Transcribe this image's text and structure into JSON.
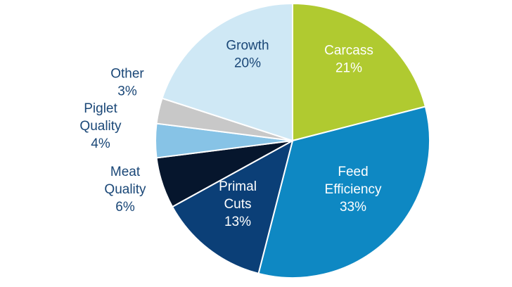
{
  "chart_data": {
    "type": "pie",
    "title": "",
    "start_angle_deg": 0,
    "direction": "clockwise",
    "slices": [
      {
        "name": "Carcass",
        "value": 21,
        "value_label": "21%",
        "color": "#b0ca30",
        "label_lines": [
          "Carcass",
          "21%"
        ],
        "label_color": "#ffffff",
        "label_position": "inside"
      },
      {
        "name": "Feed Efficiency",
        "value": 33,
        "value_label": "33%",
        "color": "#0e88c3",
        "label_lines": [
          "Feed",
          "Efficiency",
          "33%"
        ],
        "label_color": "#ffffff",
        "label_position": "inside"
      },
      {
        "name": "Primal Cuts",
        "value": 13,
        "value_label": "13%",
        "color": "#0b3f77",
        "label_lines": [
          "Primal",
          "Cuts",
          "13%"
        ],
        "label_color": "#ffffff",
        "label_position": "inside"
      },
      {
        "name": "Meat Quality",
        "value": 6,
        "value_label": "6%",
        "color": "#06162d",
        "label_lines": [
          "Meat",
          "Quality",
          "6%"
        ],
        "label_color": "#1a4777",
        "label_position": "outside"
      },
      {
        "name": "Piglet Quality",
        "value": 4,
        "value_label": "4%",
        "color": "#87c3e6",
        "label_lines": [
          "Piglet",
          "Quality",
          "4%"
        ],
        "label_color": "#1a4777",
        "label_position": "outside"
      },
      {
        "name": "Other",
        "value": 3,
        "value_label": "3%",
        "color": "#c8c8c8",
        "label_lines": [
          "Other",
          "3%"
        ],
        "label_color": "#1a4777",
        "label_position": "outside"
      },
      {
        "name": "Growth",
        "value": 20,
        "value_label": "20%",
        "color": "#cfe8f5",
        "label_lines": [
          "Growth",
          "20%"
        ],
        "label_color": "#1a4777",
        "label_position": "inside"
      }
    ]
  }
}
